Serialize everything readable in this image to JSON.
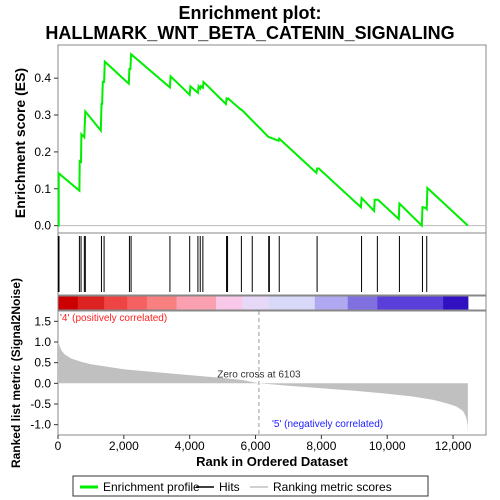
{
  "chart_data": {
    "type": "line",
    "title_line1": "Enrichment plot:",
    "title_line2": "HALLMARK_WNT_BETA_CATENIN_SIGNALING",
    "es_panel": {
      "ylabel": "Enrichment score (ES)",
      "ylim": [
        -0.02,
        0.49
      ],
      "yticks": [
        0.0,
        0.1,
        0.2,
        0.3,
        0.4
      ],
      "ytick_labels": [
        "0.0",
        "0.1",
        "0.2",
        "0.3",
        "0.4"
      ],
      "series_name": "Enrichment profile",
      "color": "#00ee00",
      "x": [
        0,
        20,
        20,
        20,
        650,
        660,
        700,
        710,
        800,
        830,
        1300,
        1320,
        1340,
        1360,
        1400,
        1420,
        2150,
        2170,
        2200,
        2220,
        3400,
        3420,
        4000,
        4020,
        4250,
        4270,
        4320,
        4340,
        4400,
        4420,
        5100,
        5120,
        5150,
        5170,
        5550,
        5570,
        6400,
        6420,
        6700,
        6720,
        7850,
        7870,
        7900,
        7920,
        9200,
        9220,
        9600,
        9620,
        9700,
        9720,
        10350,
        10370,
        11050,
        11070,
        11150,
        11170,
        11200,
        11220,
        12450
      ],
      "y": [
        0.0,
        0.0,
        0.1,
        0.142,
        0.095,
        0.175,
        0.173,
        0.248,
        0.24,
        0.31,
        0.258,
        0.33,
        0.33,
        0.39,
        0.39,
        0.445,
        0.385,
        0.425,
        0.425,
        0.465,
        0.375,
        0.405,
        0.355,
        0.378,
        0.36,
        0.378,
        0.372,
        0.378,
        0.374,
        0.39,
        0.33,
        0.345,
        0.343,
        0.345,
        0.315,
        0.315,
        0.24,
        0.24,
        0.23,
        0.236,
        0.143,
        0.155,
        0.155,
        0.155,
        0.05,
        0.075,
        0.04,
        0.07,
        0.07,
        0.07,
        0.018,
        0.06,
        0.0,
        0.05,
        0.048,
        0.048,
        0.045,
        0.102,
        0.0
      ]
    },
    "hits": [
      10,
      30,
      650,
      700,
      800,
      830,
      1320,
      1400,
      2170,
      2220,
      3400,
      4000,
      4250,
      4320,
      4400,
      5120,
      5150,
      5570,
      5900,
      6400,
      6420,
      6720,
      7870,
      9220,
      9700,
      10370,
      11070,
      11200
    ],
    "color_bar": {
      "colors": [
        "#cc0000",
        "#dd2222",
        "#ee4444",
        "#f56060",
        "#f88080",
        "#fba0b0",
        "#f8c8e8",
        "#e8d8f8",
        "#d8d8f8",
        "#b0a8f0",
        "#8070e0",
        "#5a40d8",
        "#3010c0"
      ],
      "breaks": [
        0,
        600,
        1400,
        2100,
        2700,
        3600,
        4800,
        5600,
        6400,
        7800,
        8800,
        9700,
        11700,
        12450
      ]
    },
    "metric_panel": {
      "ylabel": "Ranked list metric (Signal2Noise)",
      "xlabel": "Rank in Ordered Dataset",
      "ylim": [
        -1.25,
        1.75
      ],
      "yticks": [
        -1.0,
        -0.5,
        0.0,
        0.5,
        1.0,
        1.5
      ],
      "ytick_labels": [
        "-1.0",
        "-0.5",
        "0.0",
        "0.5",
        "1.0",
        "1.5"
      ],
      "x": [
        0,
        30,
        100,
        200,
        400,
        700,
        1000,
        1500,
        2000,
        3000,
        4000,
        5000,
        5600,
        6103,
        7000,
        8000,
        9000,
        10000,
        10800,
        11400,
        11800,
        12100,
        12300,
        12400,
        12440,
        12450
      ],
      "y": [
        1.0,
        0.95,
        0.8,
        0.7,
        0.6,
        0.52,
        0.46,
        0.4,
        0.34,
        0.27,
        0.2,
        0.13,
        0.08,
        0.0,
        -0.06,
        -0.12,
        -0.18,
        -0.25,
        -0.32,
        -0.4,
        -0.48,
        -0.56,
        -0.67,
        -0.82,
        -1.0,
        -1.2
      ],
      "color": "#c0c0c0",
      "zero_cross_label": "Zero cross at 6103",
      "zero_cross_x": 6103,
      "pos_label": "'4' (positively correlated)",
      "pos_color": "#ff2020",
      "neg_label": "'5' (negatively correlated)",
      "neg_color": "#2020ff"
    },
    "xlim": [
      0,
      13000
    ],
    "xticks": [
      0,
      2000,
      4000,
      6000,
      8000,
      10000,
      12000
    ],
    "xtick_labels": [
      "0",
      "2,000",
      "4,000",
      "6,000",
      "8,000",
      "10,000",
      "12,000"
    ],
    "legend": {
      "items": [
        {
          "label": "Enrichment profile",
          "color": "#00ee00",
          "kind": "thick"
        },
        {
          "label": "Hits",
          "color": "#000000",
          "kind": "thin"
        },
        {
          "label": "Ranking metric scores",
          "color": "#c0c0c0",
          "kind": "thin"
        }
      ]
    }
  }
}
